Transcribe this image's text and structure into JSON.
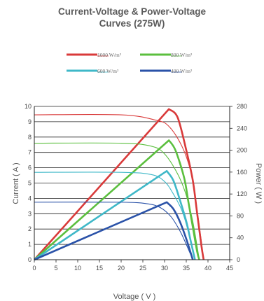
{
  "title_line1": "Current-Voltage & Power-Voltage",
  "title_line2": "Curves (275W)",
  "chart_data": {
    "type": "line",
    "title": "Current-Voltage & Power-Voltage Curves (275W)",
    "xlabel": "Voltage ( V )",
    "ylabel": "Current ( A )",
    "y2label": "Power ( W )",
    "xlim": [
      0,
      45
    ],
    "ylim": [
      0,
      10
    ],
    "y2lim": [
      0,
      280
    ],
    "xticks": [
      "0",
      "5",
      "10",
      "15",
      "20",
      "25",
      "30",
      "35",
      "40",
      "45"
    ],
    "yticks": [
      "0",
      "1",
      "2",
      "3",
      "4",
      "5",
      "6",
      "7",
      "8",
      "9",
      "10"
    ],
    "y2ticks": [
      "0",
      "40",
      "80",
      "120",
      "160",
      "200",
      "240",
      "280"
    ],
    "grid": "horizontal",
    "legend": "top",
    "series": [
      {
        "name": "1000 W/m²",
        "color": "#d93a3a",
        "iv": [
          [
            0,
            9.45
          ],
          [
            20,
            9.45
          ],
          [
            28,
            9.1
          ],
          [
            31,
            8.7
          ],
          [
            34,
            7.4
          ],
          [
            36,
            5.8
          ],
          [
            37,
            4.2
          ],
          [
            38,
            2.2
          ],
          [
            39,
            0
          ]
        ],
        "pv": [
          [
            0,
            0
          ],
          [
            31,
            275
          ],
          [
            33,
            260
          ],
          [
            35,
            200
          ],
          [
            36.5,
            145
          ],
          [
            37.5,
            85
          ],
          [
            38.5,
            25
          ],
          [
            39,
            0
          ]
        ]
      },
      {
        "name": "800 W/m²",
        "color": "#5bbf3e",
        "iv": [
          [
            0,
            7.6
          ],
          [
            20,
            7.6
          ],
          [
            27,
            7.4
          ],
          [
            30,
            6.9
          ],
          [
            33,
            5.6
          ],
          [
            35,
            4.2
          ],
          [
            36.5,
            2.5
          ],
          [
            38,
            0
          ]
        ],
        "pv": [
          [
            0,
            0
          ],
          [
            31,
            218
          ],
          [
            32.5,
            200
          ],
          [
            34.5,
            150
          ],
          [
            35.5,
            105
          ],
          [
            36.5,
            60
          ],
          [
            37.5,
            15
          ],
          [
            38,
            0
          ]
        ]
      },
      {
        "name": "600 W/m²",
        "color": "#3fb8c8",
        "iv": [
          [
            0,
            5.7
          ],
          [
            20,
            5.7
          ],
          [
            27,
            5.55
          ],
          [
            30,
            5.1
          ],
          [
            32,
            4.3
          ],
          [
            34,
            3.2
          ],
          [
            35.5,
            1.8
          ],
          [
            37,
            0
          ]
        ],
        "pv": [
          [
            0,
            0
          ],
          [
            30.5,
            162
          ],
          [
            32,
            145
          ],
          [
            33.5,
            110
          ],
          [
            35,
            70
          ],
          [
            36,
            35
          ],
          [
            37,
            0
          ]
        ]
      },
      {
        "name": "400 W/m²",
        "color": "#2a52a8",
        "iv": [
          [
            0,
            3.75
          ],
          [
            20,
            3.75
          ],
          [
            26,
            3.65
          ],
          [
            29,
            3.4
          ],
          [
            31.5,
            2.8
          ],
          [
            33.5,
            1.9
          ],
          [
            35,
            1.0
          ],
          [
            36.5,
            0
          ]
        ],
        "pv": [
          [
            0,
            0
          ],
          [
            30.5,
            105
          ],
          [
            32,
            93
          ],
          [
            33.5,
            70
          ],
          [
            35,
            38
          ],
          [
            36.5,
            0
          ]
        ]
      }
    ]
  }
}
